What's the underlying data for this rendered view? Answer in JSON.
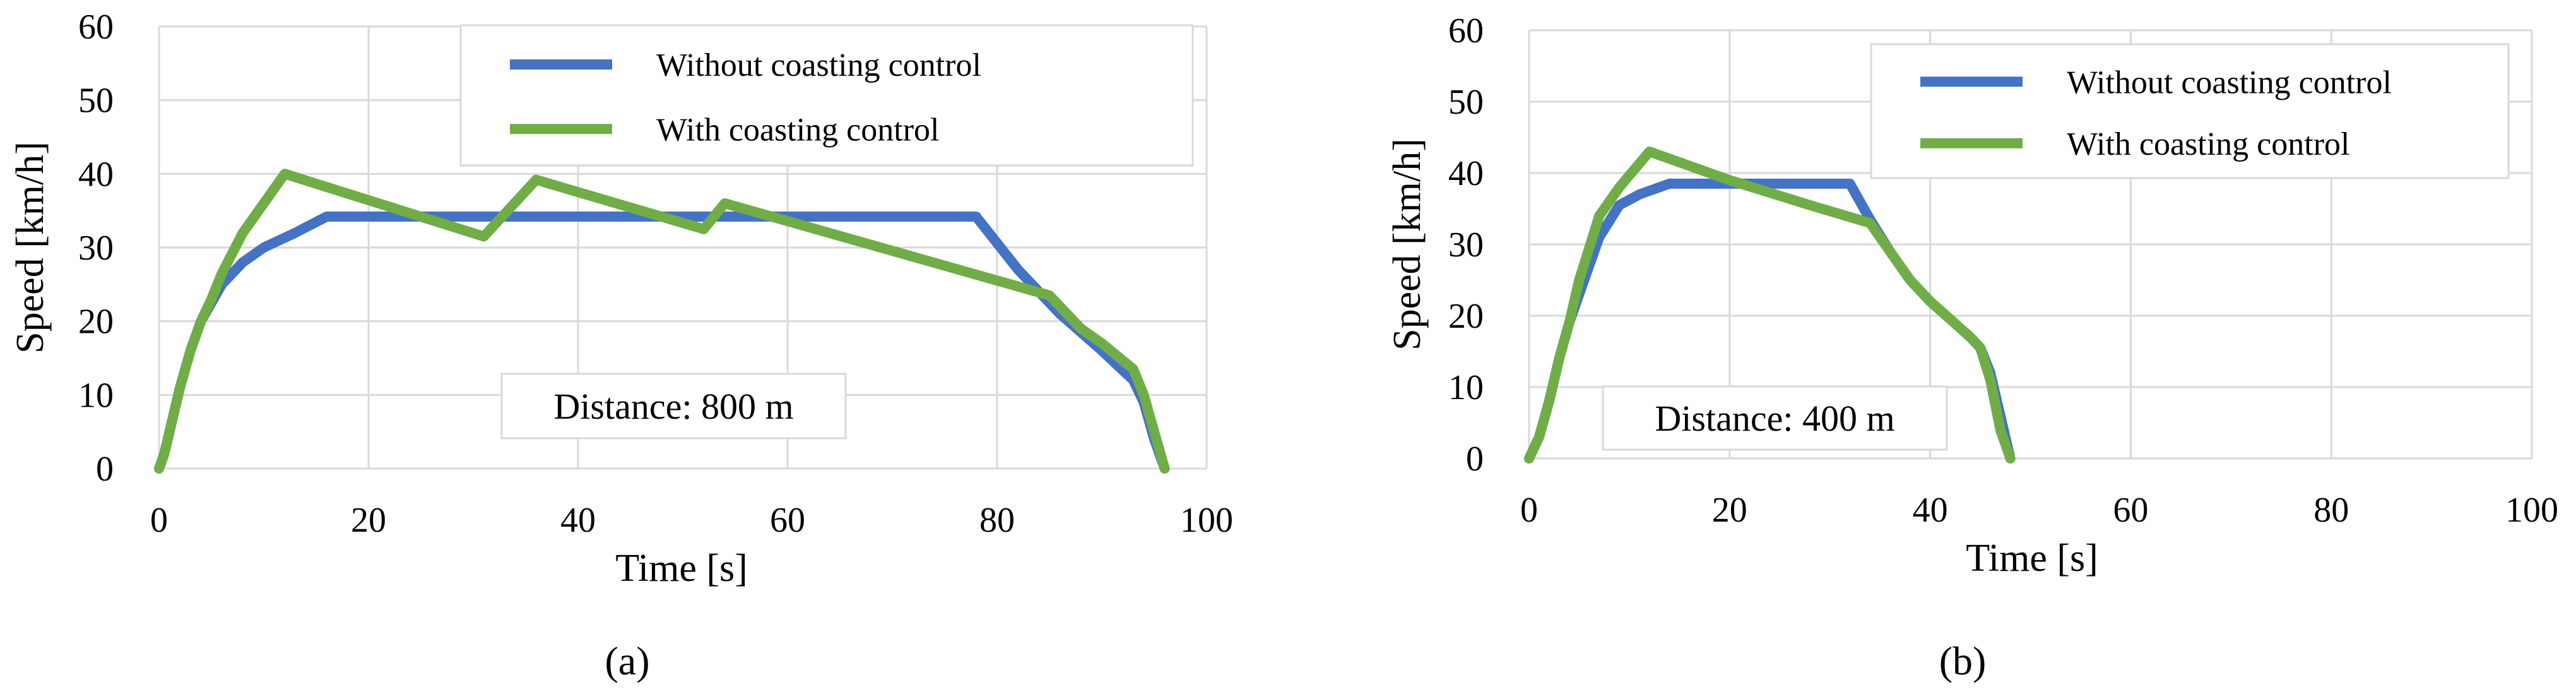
{
  "figure": {
    "panels": [
      "(a)",
      "(b)"
    ]
  },
  "chart_data": [
    {
      "type": "line",
      "panel_label": "(a)",
      "annotation": "Distance: 800 m",
      "xlabel": "Time  [s]",
      "ylabel": "Speed  [km/h]",
      "xlim": [
        0,
        100
      ],
      "ylim": [
        0,
        60
      ],
      "xticks": [
        0,
        20,
        40,
        60,
        80,
        100
      ],
      "yticks": [
        0,
        10,
        20,
        30,
        40,
        50,
        60
      ],
      "grid": true,
      "legend_position": "top-right",
      "series": [
        {
          "name": "Without coasting control",
          "color": "#4472C4",
          "x": [
            0,
            0.5,
            1,
            2,
            3,
            4,
            5,
            6,
            8,
            10,
            13,
            16,
            78,
            82,
            86,
            90,
            93,
            94,
            95,
            96
          ],
          "y": [
            0,
            2,
            5,
            11,
            16,
            20,
            22.5,
            25,
            28,
            30,
            32,
            34.2,
            34.2,
            27,
            21,
            16,
            12,
            9,
            4,
            0
          ]
        },
        {
          "name": "With coasting control",
          "color": "#70AD47",
          "x": [
            0,
            0.5,
            1,
            2,
            3,
            4,
            5,
            6,
            8,
            12,
            31,
            36,
            52,
            54,
            85,
            88,
            90,
            93,
            94,
            95,
            96
          ],
          "y": [
            0,
            2,
            5,
            11,
            16,
            20,
            23,
            26.5,
            32,
            40,
            31.5,
            39.2,
            32.5,
            36,
            23.5,
            19,
            17,
            13.5,
            10,
            5,
            0
          ]
        }
      ]
    },
    {
      "type": "line",
      "panel_label": "(b)",
      "annotation": "Distance: 400 m",
      "xlabel": "Time  [s]",
      "ylabel": "Speed  [km/h]",
      "xlim": [
        0,
        100
      ],
      "ylim": [
        0,
        60
      ],
      "xticks": [
        0,
        20,
        40,
        60,
        80,
        100
      ],
      "yticks": [
        0,
        10,
        20,
        30,
        40,
        50,
        60
      ],
      "grid": true,
      "legend_position": "top-right",
      "series": [
        {
          "name": "Without coasting control",
          "color": "#4472C4",
          "x": [
            0,
            1,
            2,
            3,
            4,
            5,
            7,
            9,
            11,
            14,
            32,
            34,
            36,
            38,
            40,
            42,
            44,
            45,
            46,
            47,
            48
          ],
          "y": [
            0,
            3,
            8,
            14,
            19,
            23,
            31,
            35.5,
            37,
            38.5,
            38.5,
            33.5,
            29,
            25,
            22,
            19.5,
            17,
            15.5,
            12,
            6,
            0
          ]
        },
        {
          "name": "With coasting control",
          "color": "#70AD47",
          "x": [
            0,
            1,
            2,
            3,
            4,
            5,
            7,
            9,
            12,
            20,
            28,
            34,
            36,
            38,
            40,
            42,
            44,
            45,
            46,
            47,
            48
          ],
          "y": [
            0,
            3,
            8,
            14,
            19,
            25,
            34,
            38,
            43,
            39,
            35.5,
            33,
            29,
            25,
            22,
            19.5,
            17,
            15.5,
            11,
            4,
            0
          ]
        }
      ]
    }
  ]
}
